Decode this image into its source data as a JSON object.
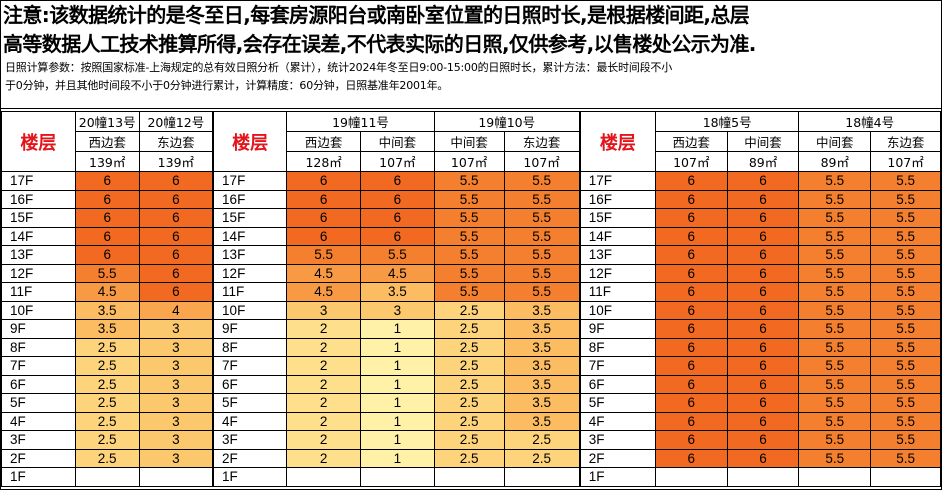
{
  "notice": {
    "line1": "注意:该数据统计的是冬至日,每套房源阳台或南卧室位置的日照时长,是根据楼间距,总层",
    "line2": "高等数据人工技术推算所得,会存在误差,不代表实际的日照,仅供参考,以售楼处公示为准."
  },
  "params": {
    "line1": "日照计算参数：按照国家标准-上海规定的总有效日照分析（累计），统计2024年冬至日9:00-15:00的日照时长，累计方法：最长时间段不小",
    "line2": "于0分钟，并且其他时间段不小于0分钟进行累计，计算精度：60分钟，日照基准年2001年。"
  },
  "floor_header": "楼层",
  "area_unit": "㎡",
  "groups": [
    {
      "buildings": [
        {
          "name": "20幢13号",
          "units": [
            {
              "type": "西边套",
              "area": "139"
            }
          ]
        },
        {
          "name": "20幢12号",
          "units": [
            {
              "type": "东边套",
              "area": "139"
            }
          ]
        }
      ]
    },
    {
      "buildings": [
        {
          "name": "19幢11号",
          "units": [
            {
              "type": "西边套",
              "area": "128"
            },
            {
              "type": "中间套",
              "area": "107"
            }
          ]
        },
        {
          "name": "19幢10号",
          "units": [
            {
              "type": "中间套",
              "area": "107"
            },
            {
              "type": "东边套",
              "area": "107"
            }
          ]
        }
      ]
    },
    {
      "buildings": [
        {
          "name": "18幢5号",
          "units": [
            {
              "type": "西边套",
              "area": "107"
            },
            {
              "type": "中间套",
              "area": "89"
            }
          ]
        },
        {
          "name": "18幢4号",
          "units": [
            {
              "type": "中间套",
              "area": "89"
            },
            {
              "type": "东边套",
              "area": "107"
            }
          ]
        }
      ]
    }
  ],
  "floors": [
    "17F",
    "16F",
    "15F",
    "14F",
    "13F",
    "12F",
    "11F",
    "10F",
    "9F",
    "8F",
    "7F",
    "6F",
    "5F",
    "4F",
    "3F",
    "2F",
    "1F"
  ],
  "values": {
    "group1": [
      [
        "6",
        "6"
      ],
      [
        "6",
        "6"
      ],
      [
        "6",
        "6"
      ],
      [
        "6",
        "6"
      ],
      [
        "6",
        "6"
      ],
      [
        "5.5",
        "6"
      ],
      [
        "4.5",
        "6"
      ],
      [
        "3.5",
        "4"
      ],
      [
        "3.5",
        "3"
      ],
      [
        "2.5",
        "3"
      ],
      [
        "2.5",
        "3"
      ],
      [
        "2.5",
        "3"
      ],
      [
        "2.5",
        "3"
      ],
      [
        "2.5",
        "3"
      ],
      [
        "2.5",
        "3"
      ],
      [
        "2.5",
        "3"
      ],
      [
        "",
        ""
      ]
    ],
    "group2": [
      [
        "6",
        "6",
        "5.5",
        "5.5"
      ],
      [
        "6",
        "6",
        "5.5",
        "5.5"
      ],
      [
        "6",
        "6",
        "5.5",
        "5.5"
      ],
      [
        "6",
        "6",
        "5.5",
        "5.5"
      ],
      [
        "5.5",
        "5.5",
        "5.5",
        "5.5"
      ],
      [
        "4.5",
        "4.5",
        "5.5",
        "5.5"
      ],
      [
        "4.5",
        "3.5",
        "5.5",
        "5.5"
      ],
      [
        "3",
        "3",
        "2.5",
        "3.5"
      ],
      [
        "2",
        "1",
        "2.5",
        "3.5"
      ],
      [
        "2",
        "1",
        "2.5",
        "3.5"
      ],
      [
        "2",
        "1",
        "2.5",
        "3.5"
      ],
      [
        "2",
        "1",
        "2.5",
        "3.5"
      ],
      [
        "2",
        "1",
        "2.5",
        "3.5"
      ],
      [
        "2",
        "1",
        "2.5",
        "3.5"
      ],
      [
        "2",
        "1",
        "2.5",
        "2.5"
      ],
      [
        "2",
        "1",
        "2.5",
        "2.5"
      ],
      [
        "",
        "",
        "",
        ""
      ]
    ],
    "group3": [
      [
        "6",
        "6",
        "5.5",
        "5.5"
      ],
      [
        "6",
        "6",
        "5.5",
        "5.5"
      ],
      [
        "6",
        "6",
        "5.5",
        "5.5"
      ],
      [
        "6",
        "6",
        "5.5",
        "5.5"
      ],
      [
        "6",
        "6",
        "5.5",
        "5.5"
      ],
      [
        "6",
        "6",
        "5.5",
        "5.5"
      ],
      [
        "6",
        "6",
        "5.5",
        "5.5"
      ],
      [
        "6",
        "6",
        "5.5",
        "5.5"
      ],
      [
        "6",
        "6",
        "5.5",
        "5.5"
      ],
      [
        "6",
        "6",
        "5.5",
        "5.5"
      ],
      [
        "6",
        "6",
        "5.5",
        "5.5"
      ],
      [
        "6",
        "6",
        "5.5",
        "5.5"
      ],
      [
        "6",
        "6",
        "5.5",
        "5.5"
      ],
      [
        "6",
        "6",
        "5.5",
        "5.5"
      ],
      [
        "6",
        "6",
        "5.5",
        "5.5"
      ],
      [
        "6",
        "6",
        "5.5",
        "5.5"
      ],
      [
        "",
        "",
        "",
        ""
      ]
    ]
  },
  "colors": {
    "6": "#f26a22",
    "5.5": "#f47f2e",
    "4.5": "#f89a44",
    "4": "#f9a64e",
    "3.5": "#fcbd62",
    "3": "#fcc86d",
    "2.5": "#fdd47c",
    "2": "#fee08c",
    "1": "#fff1a8",
    "": "#ffffff"
  }
}
